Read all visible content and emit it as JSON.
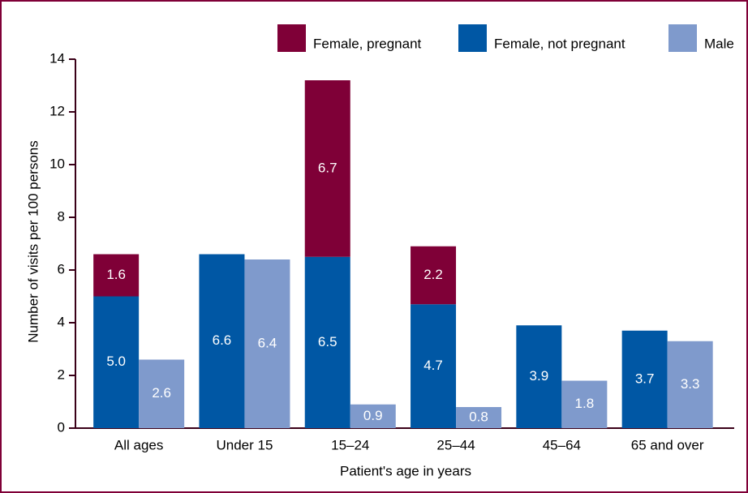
{
  "chart_data": {
    "type": "bar",
    "x_label": "Patient's age in years",
    "y_label": "Number of visits per 100 persons",
    "categories": [
      "All ages",
      "Under 15",
      "15–24",
      "25–44",
      "45–64",
      "65 and over"
    ],
    "series": [
      {
        "name": "Female, pregnant",
        "color": "#7f0037",
        "values": [
          1.6,
          null,
          6.7,
          2.2,
          null,
          null
        ]
      },
      {
        "name": "Female, not pregnant",
        "color": "#0057a4",
        "values": [
          5.0,
          6.6,
          6.5,
          4.7,
          3.9,
          3.7
        ],
        "value_labels": [
          "5.0",
          "6.6",
          "6.5",
          "4.7",
          "3.9",
          "3.7"
        ]
      },
      {
        "name": "Male",
        "color": "#7f9acc",
        "values": [
          2.6,
          6.4,
          0.9,
          0.8,
          1.8,
          3.3
        ]
      }
    ],
    "ylim": [
      0,
      14
    ],
    "yticks": [
      0,
      2,
      4,
      6,
      8,
      10,
      12,
      14
    ],
    "legend": "top-right"
  }
}
